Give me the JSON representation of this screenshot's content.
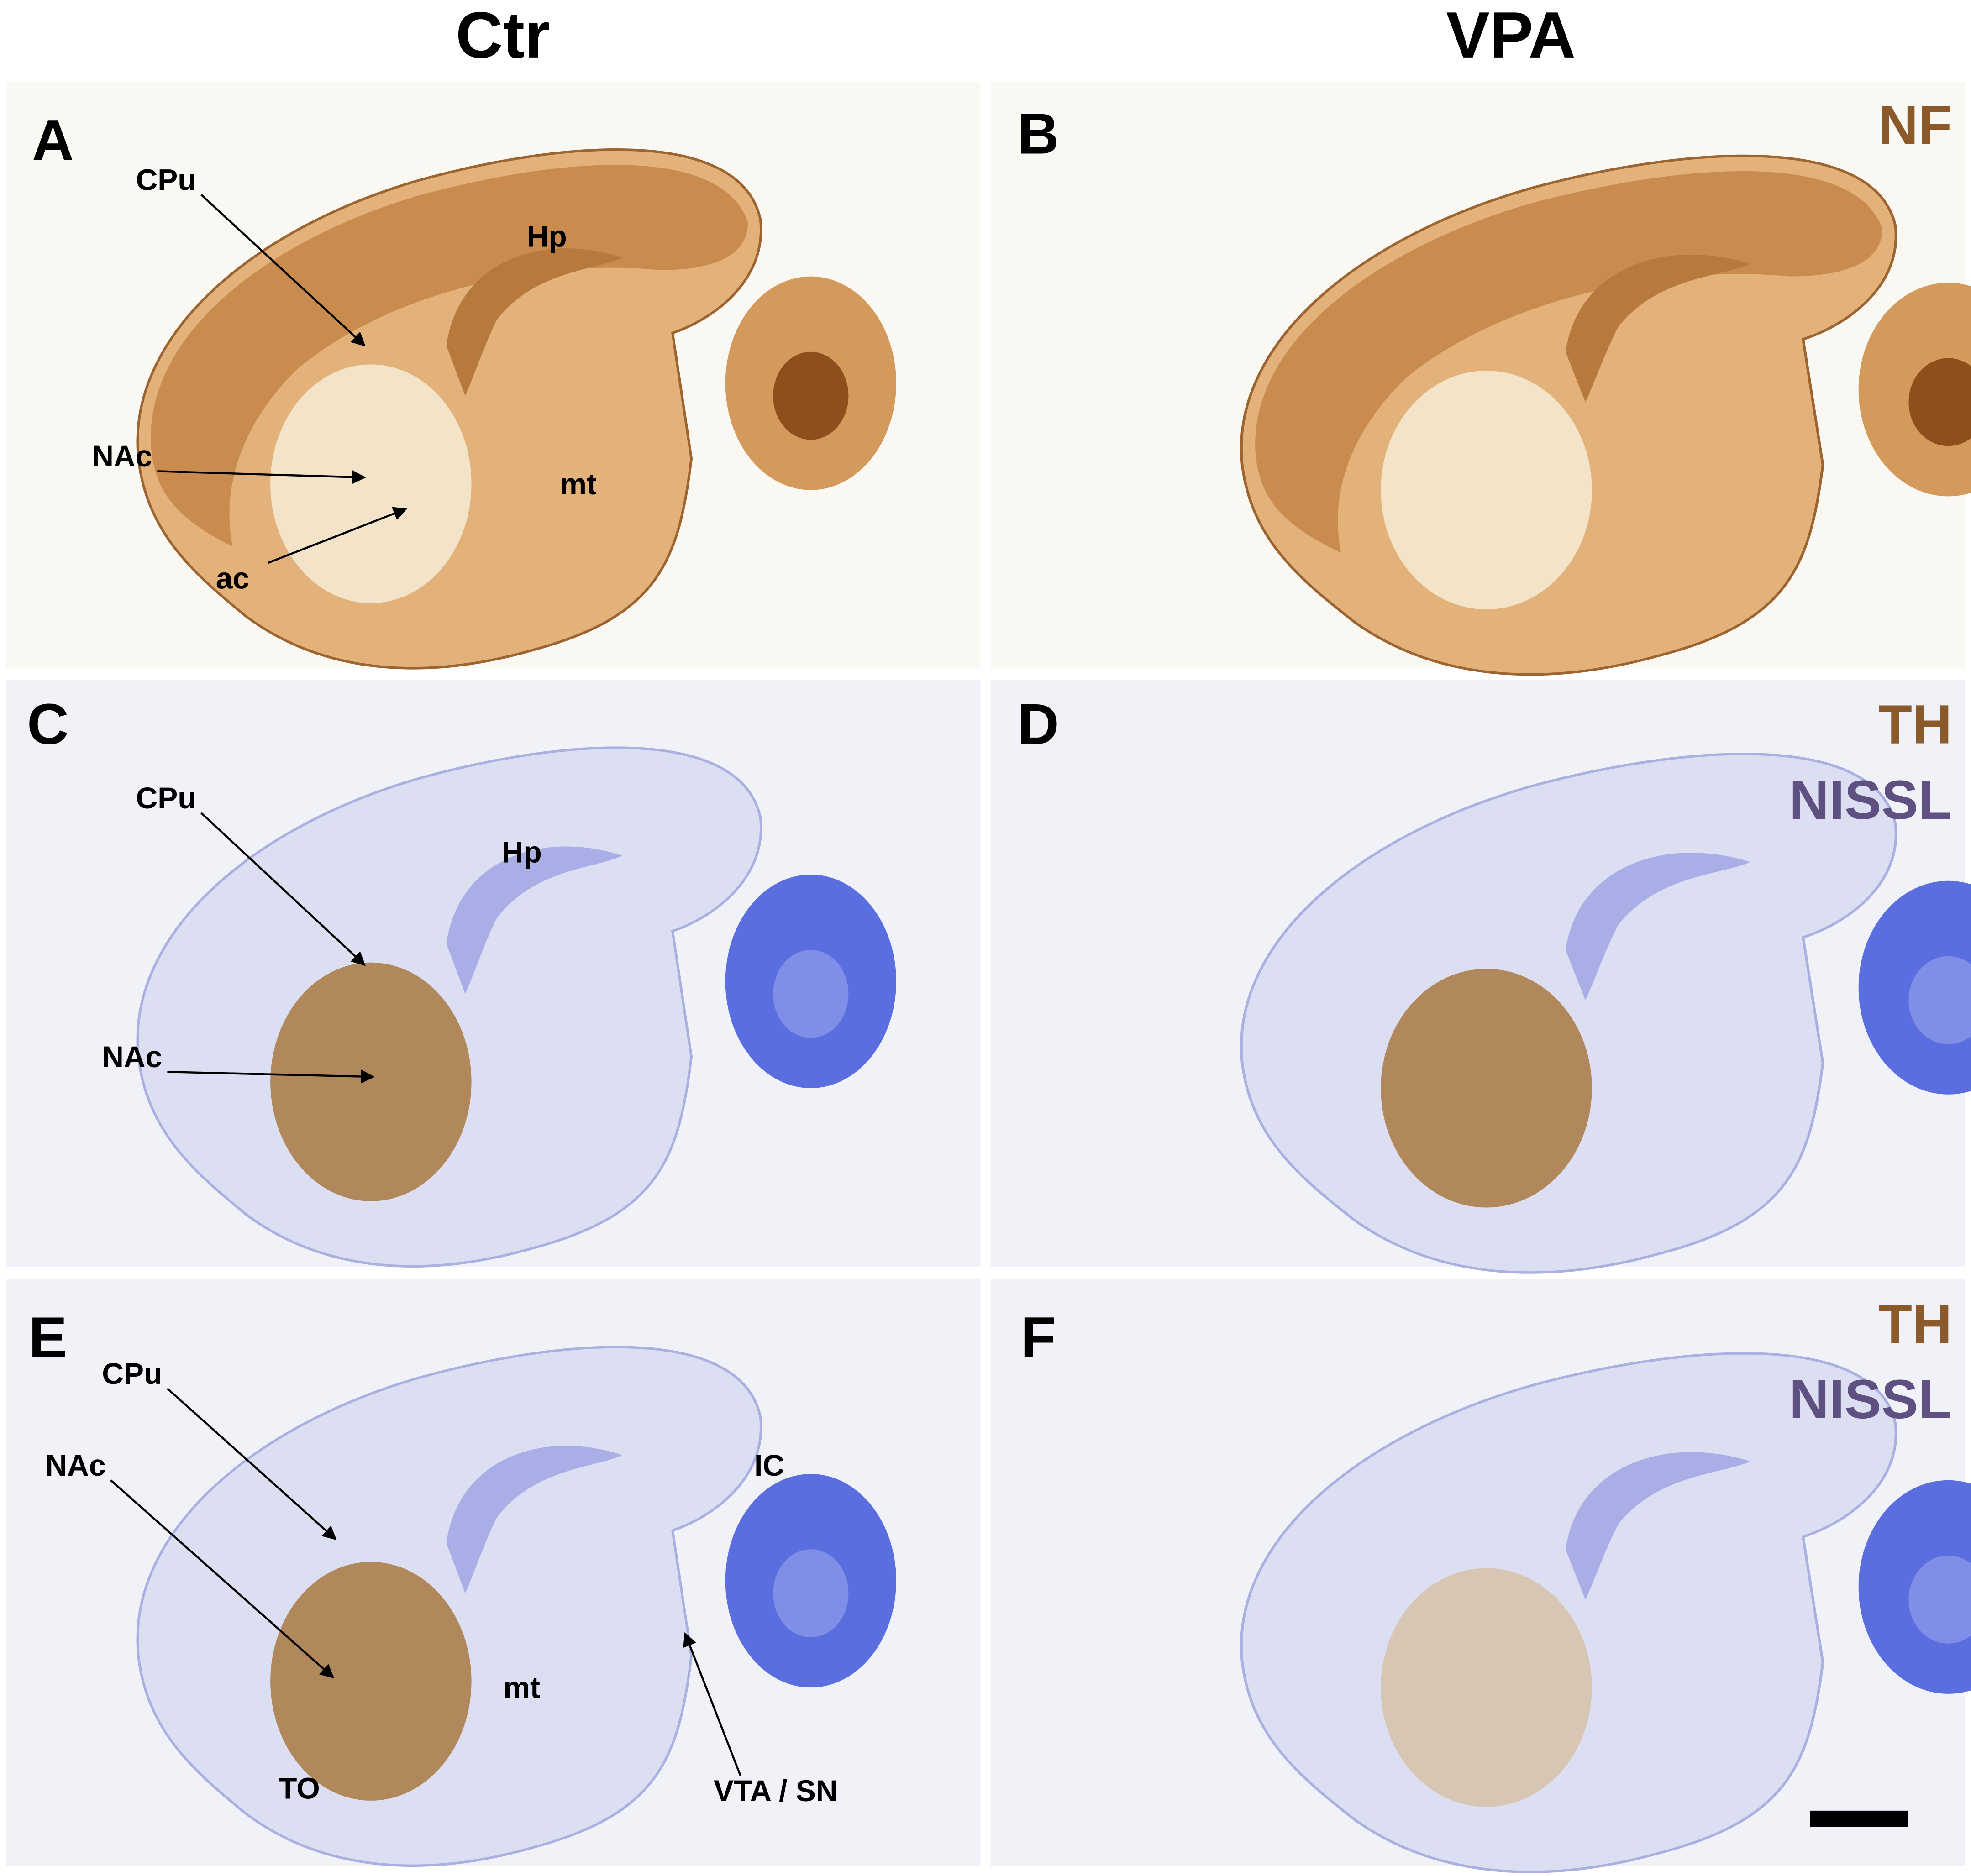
{
  "columns": [
    "Ctr",
    "VPA"
  ],
  "panels": [
    {
      "letter": "A",
      "labels": [
        "CPu",
        "Hp",
        "NAc",
        "mt",
        "ac"
      ]
    },
    {
      "letter": "B",
      "stains": [
        "NF"
      ]
    },
    {
      "letter": "C",
      "labels": [
        "CPu",
        "Hp",
        "NAc"
      ]
    },
    {
      "letter": "D",
      "stains": [
        "TH",
        "NISSL"
      ]
    },
    {
      "letter": "E",
      "labels": [
        "CPu",
        "NAc",
        "IC",
        "mt",
        "TO",
        "VTA / SN"
      ]
    },
    {
      "letter": "F",
      "stains": [
        "TH",
        "NISSL"
      ]
    }
  ]
}
